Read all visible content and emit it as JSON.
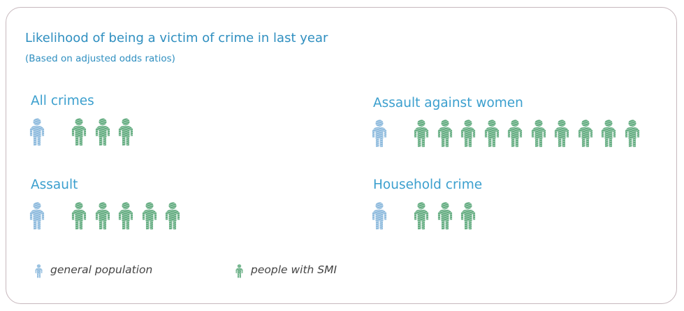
{
  "title": "Likelihood of being a victim of crime in last year",
  "subtitle": "(Based on adjusted odds ratios)",
  "colors": {
    "general_population": "#8ab8dc",
    "people_with_smi": "#5faa7d",
    "title": "#2f8fc0",
    "border": "#c7b8bd"
  },
  "legend": {
    "general_population": "general population",
    "people_with_smi": "people with SMI"
  },
  "chart_data": {
    "type": "pictogram",
    "title": "Likelihood of being a victim of crime in last year",
    "subtitle": "(Based on adjusted odds ratios)",
    "legend": [
      "general population",
      "people with SMI"
    ],
    "panels": [
      {
        "label": "All crimes",
        "general_population": 1,
        "people_with_smi": 3
      },
      {
        "label": "Assault against women",
        "general_population": 1,
        "people_with_smi": 10
      },
      {
        "label": "Assault",
        "general_population": 1,
        "people_with_smi": 5
      },
      {
        "label": "Household crime",
        "general_population": 1,
        "people_with_smi": 3
      }
    ]
  }
}
